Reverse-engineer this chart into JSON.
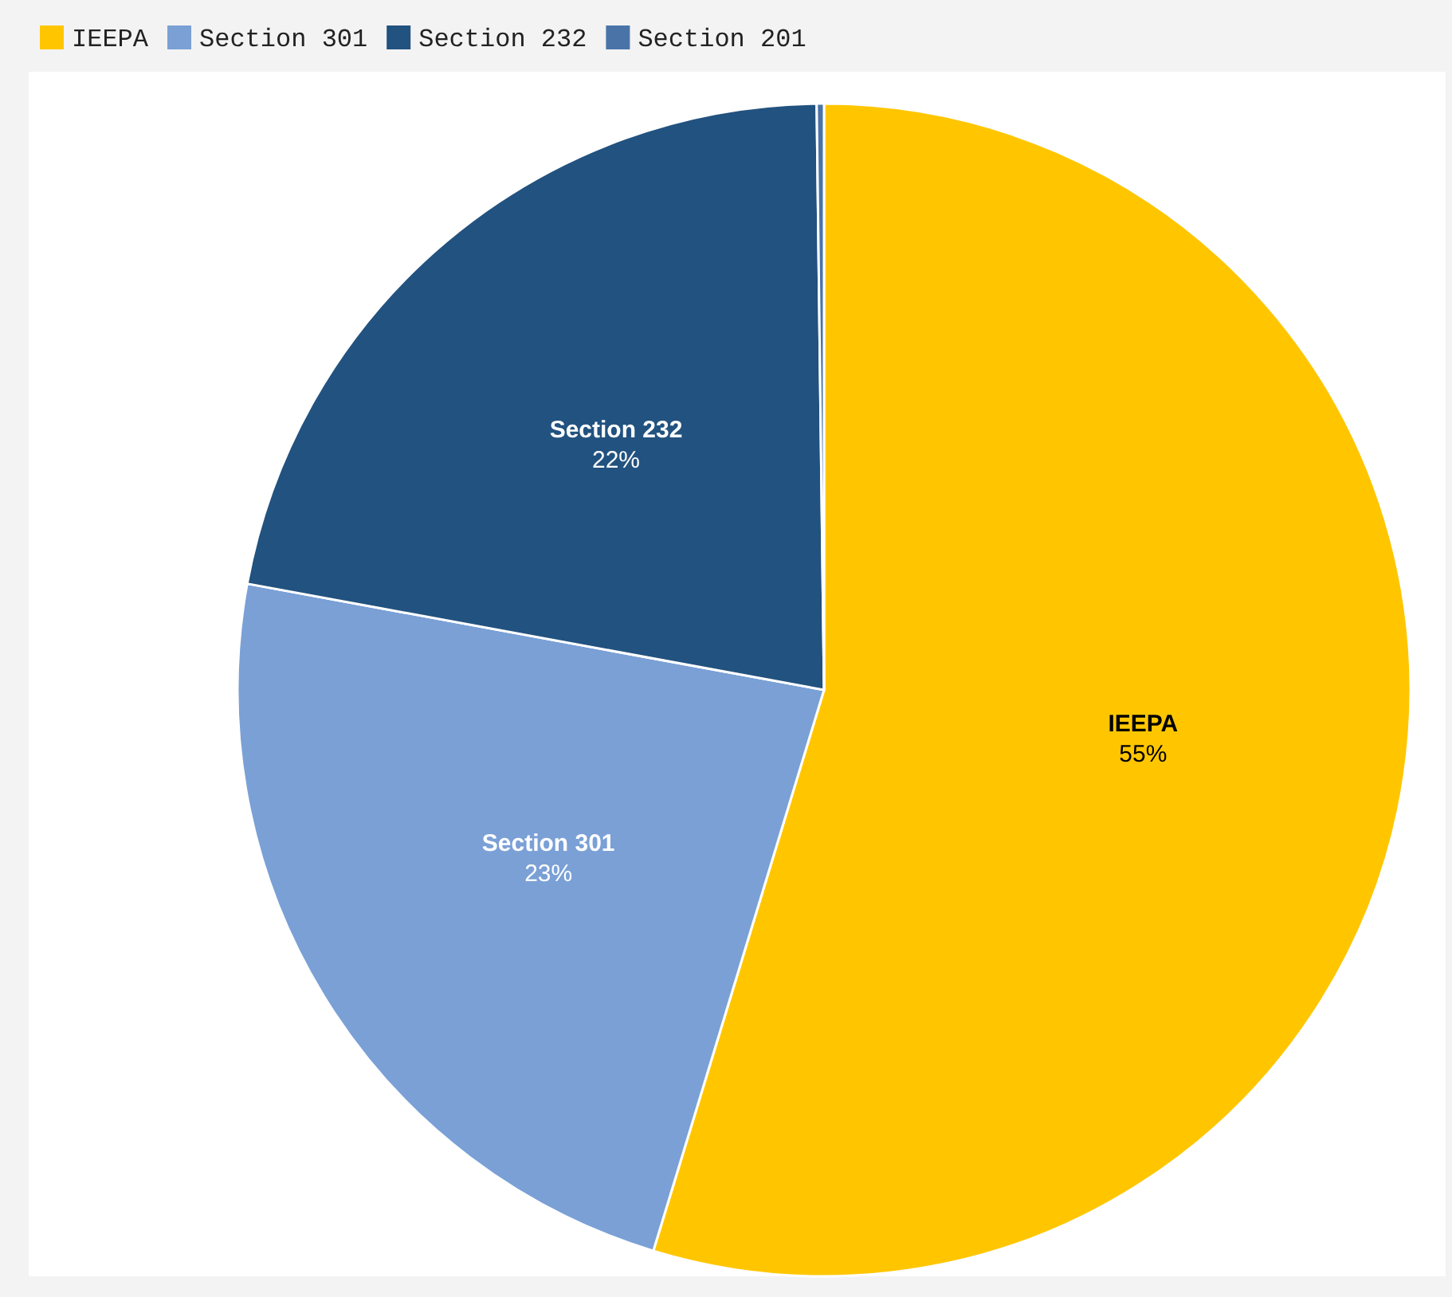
{
  "chart_data": {
    "type": "pie",
    "categories": [
      "IEEPA",
      "Section 301",
      "Section 232",
      "Section 201"
    ],
    "values": [
      54.7,
      23.2,
      21.9,
      0.2
    ],
    "colors": [
      "#ffc600",
      "#7aa0d6",
      "#22527f",
      "#4a74a8"
    ],
    "value_labels": [
      "55%",
      "23%",
      "22%",
      null
    ],
    "legend": "top left"
  }
}
